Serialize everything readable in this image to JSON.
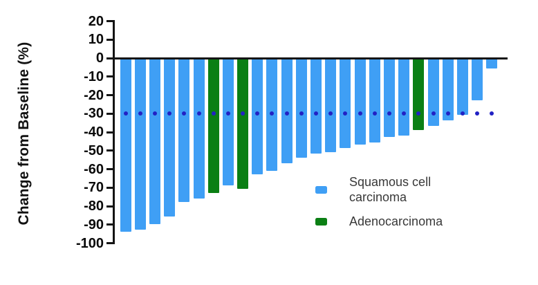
{
  "figure": {
    "background": "#ffffff",
    "axis_color": "#141414"
  },
  "y_axis": {
    "label": "Change from Baseline (%)",
    "tick_values": [
      20,
      10,
      0,
      -10,
      -20,
      -30,
      -40,
      -50,
      -60,
      -70,
      -80,
      -90,
      -100
    ],
    "tick_labels": [
      "20",
      "10",
      "0",
      "-10",
      "-20",
      "-30",
      "-40",
      "-50",
      "-60",
      "-70",
      "-80",
      "-90",
      "-100"
    ]
  },
  "reference_line": {
    "value": -30,
    "style": "dotted",
    "color": "#2222c4"
  },
  "legend": {
    "squamous": {
      "line1": "Squamous cell",
      "line2": "carcinoma",
      "color": "#3f9ff5"
    },
    "adeno": {
      "line1": "Adenocarcinoma",
      "color": "#0b7f14"
    }
  },
  "chart_data": {
    "type": "bar",
    "subtype": "waterfall",
    "title": "",
    "xlabel": "",
    "ylabel": "Change from Baseline (%)",
    "ylim": [
      -100,
      20
    ],
    "grid": false,
    "legend_position": "lower-right",
    "reference_line_y": -30,
    "series_colors": {
      "squamous": "#3f9ff5",
      "adeno": "#0b7f14"
    },
    "series_names": {
      "squamous": "Squamous cell carcinoma",
      "adeno": "Adenocarcinoma"
    },
    "bars": [
      {
        "value": -93,
        "series": "squamous"
      },
      {
        "value": -92,
        "series": "squamous"
      },
      {
        "value": -89,
        "series": "squamous"
      },
      {
        "value": -85,
        "series": "squamous"
      },
      {
        "value": -77,
        "series": "squamous"
      },
      {
        "value": -75,
        "series": "squamous"
      },
      {
        "value": -72,
        "series": "adeno"
      },
      {
        "value": -68,
        "series": "squamous"
      },
      {
        "value": -70,
        "series": "adeno"
      },
      {
        "value": -62,
        "series": "squamous"
      },
      {
        "value": -60,
        "series": "squamous"
      },
      {
        "value": -56,
        "series": "squamous"
      },
      {
        "value": -53,
        "series": "squamous"
      },
      {
        "value": -51,
        "series": "squamous"
      },
      {
        "value": -50,
        "series": "squamous"
      },
      {
        "value": -48,
        "series": "squamous"
      },
      {
        "value": -46,
        "series": "squamous"
      },
      {
        "value": -45,
        "series": "squamous"
      },
      {
        "value": -42,
        "series": "squamous"
      },
      {
        "value": -41,
        "series": "squamous"
      },
      {
        "value": -38,
        "series": "adeno"
      },
      {
        "value": -36,
        "series": "squamous"
      },
      {
        "value": -33,
        "series": "squamous"
      },
      {
        "value": -30,
        "series": "squamous"
      },
      {
        "value": -22,
        "series": "squamous"
      },
      {
        "value": -5,
        "series": "squamous"
      }
    ]
  }
}
